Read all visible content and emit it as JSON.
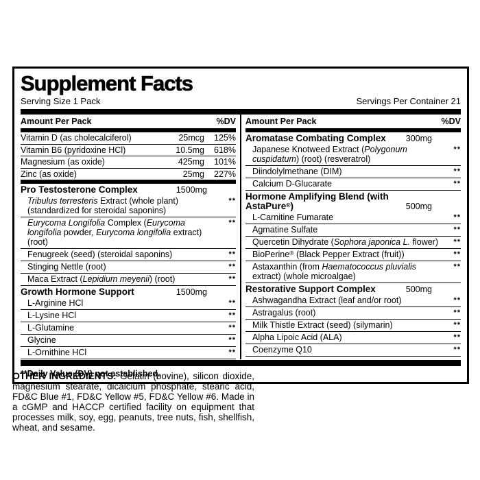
{
  "colors": {
    "label_foreground": "#000000",
    "label_background": "#ffffff"
  },
  "title": "Supplement Facts",
  "serving_size": "Serving Size 1 Pack",
  "servings_per_container": "Servings Per Container 21",
  "footnote": "**Daily Value (DV) not established.",
  "columns": {
    "left": {
      "header": {
        "amount": "Amount Per Pack",
        "dv": "%DV"
      },
      "nutrients": [
        {
          "name": "Vitamin D (as cholecalciferol)",
          "amount": "25mcg",
          "dv": "125%"
        },
        {
          "name": "Vitamin B6 (pyridoxine HCl)",
          "amount": "10.5mg",
          "dv": "618%"
        },
        {
          "name": "Magnesium (as oxide)",
          "amount": "425mg",
          "dv": "101%"
        },
        {
          "name": "Zinc (as oxide)",
          "amount": "25mg",
          "dv": "227%"
        }
      ],
      "sections": [
        {
          "name_segments": [
            {
              "t": "Pro Testosterone Complex"
            }
          ],
          "amount": "1500mg",
          "items": [
            {
              "segments": [
                {
                  "t": "Tribulus terresteris",
                  "style": "italic"
                },
                {
                  "t": " Extract (whole plant) (standardized for steroidal saponins)"
                }
              ],
              "dv": "**"
            },
            {
              "segments": [
                {
                  "t": "Eurycoma Longifolia",
                  "style": "italic"
                },
                {
                  "t": " Complex ("
                },
                {
                  "t": "Eurycoma longifolia",
                  "style": "italic"
                },
                {
                  "t": " powder, "
                },
                {
                  "t": "Eurycoma longifolia",
                  "style": "italic"
                },
                {
                  "t": " extract) (root)"
                }
              ],
              "dv": "**"
            },
            {
              "segments": [
                {
                  "t": "Fenugreek (seed) (steroidal saponins)"
                }
              ],
              "dv": "**"
            },
            {
              "segments": [
                {
                  "t": "Stinging Nettle (root)"
                }
              ],
              "dv": "**"
            },
            {
              "segments": [
                {
                  "t": "Maca Extract ("
                },
                {
                  "t": "Lepidium meyenii",
                  "style": "italic"
                },
                {
                  "t": ") (root)"
                }
              ],
              "dv": "**"
            }
          ]
        },
        {
          "name_segments": [
            {
              "t": "Growth Hormone Support"
            }
          ],
          "amount": "1500mg",
          "items": [
            {
              "segments": [
                {
                  "t": "L-Arginine HCl"
                }
              ],
              "dv": "**"
            },
            {
              "segments": [
                {
                  "t": "L-Lysine HCl"
                }
              ],
              "dv": "**"
            },
            {
              "segments": [
                {
                  "t": "L-Glutamine"
                }
              ],
              "dv": "**"
            },
            {
              "segments": [
                {
                  "t": "Glycine"
                }
              ],
              "dv": "**"
            },
            {
              "segments": [
                {
                  "t": "L-Ornithine HCl"
                }
              ],
              "dv": "**"
            }
          ]
        }
      ]
    },
    "right": {
      "header": {
        "amount": "Amount Per Pack",
        "dv": "%DV"
      },
      "sections": [
        {
          "name_segments": [
            {
              "t": "Aromatase Combating Complex"
            }
          ],
          "amount": "300mg",
          "items": [
            {
              "segments": [
                {
                  "t": "Japanese Knotweed Extract ("
                },
                {
                  "t": "Polygonum cuspidatum",
                  "style": "italic"
                },
                {
                  "t": ") (root) (resveratrol)"
                }
              ],
              "dv": "**"
            },
            {
              "segments": [
                {
                  "t": "Diindolylmethane (DIM)"
                }
              ],
              "dv": "**"
            },
            {
              "segments": [
                {
                  "t": "Calcium D-Glucarate"
                }
              ],
              "dv": "**"
            }
          ]
        },
        {
          "name_segments": [
            {
              "t": "Hormone Amplifying Blend (with AstaPure"
            },
            {
              "t": "®",
              "style": "sup"
            },
            {
              "t": ")"
            }
          ],
          "amount": "500mg",
          "items": [
            {
              "segments": [
                {
                  "t": "L-Carnitine Fumarate"
                }
              ],
              "dv": "**"
            },
            {
              "segments": [
                {
                  "t": "Agmatine Sulfate"
                }
              ],
              "dv": "**"
            },
            {
              "segments": [
                {
                  "t": "Quercetin Dihydrate ("
                },
                {
                  "t": "Sophora japonica L.",
                  "style": "italic"
                },
                {
                  "t": " flower)"
                }
              ],
              "dv": "**"
            },
            {
              "segments": [
                {
                  "t": "BioPerine"
                },
                {
                  "t": "®",
                  "style": "sup"
                },
                {
                  "t": " (Black Pepper Extract (fruit))"
                }
              ],
              "dv": "**"
            },
            {
              "segments": [
                {
                  "t": "Astaxanthin (from "
                },
                {
                  "t": "Haematococcus pluvialis",
                  "style": "italic"
                },
                {
                  "t": " extract) (whole microalgae)"
                }
              ],
              "dv": "**"
            }
          ]
        },
        {
          "name_segments": [
            {
              "t": "Restorative Support Complex"
            }
          ],
          "amount": "500mg",
          "items": [
            {
              "segments": [
                {
                  "t": "Ashwagandha Extract (leaf and/or root)"
                }
              ],
              "dv": "**"
            },
            {
              "segments": [
                {
                  "t": "Astragalus (root)"
                }
              ],
              "dv": "**"
            },
            {
              "segments": [
                {
                  "t": "Milk Thistle Extract (seed) (silymarin)"
                }
              ],
              "dv": "**"
            },
            {
              "segments": [
                {
                  "t": "Alpha Lipoic Acid (ALA)"
                }
              ],
              "dv": "**"
            },
            {
              "segments": [
                {
                  "t": "Coenzyme Q10"
                }
              ],
              "dv": "**"
            }
          ]
        }
      ]
    }
  },
  "other_ingredients": {
    "label": "OTHER INGREDIENTS:",
    "text": " Gelatin (bovine), silicon dioxide, magnesium stearate, dicalcium phosphate, stearic acid, FD&C Blue #1, FD&C Yellow #5, FD&C Yellow #6. Made in a cGMP and HACCP certified facility on equipment that processes milk, soy, egg, peanuts, tree nuts, fish, shellfish, wheat, and sesame."
  }
}
